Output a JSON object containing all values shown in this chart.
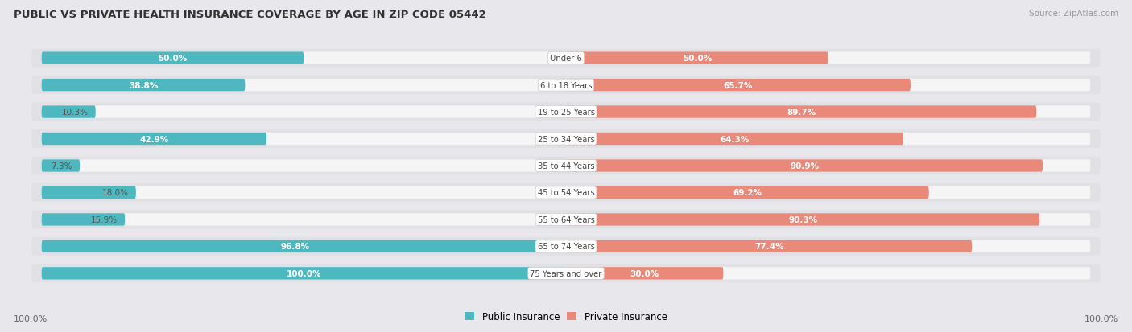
{
  "title": "PUBLIC VS PRIVATE HEALTH INSURANCE COVERAGE BY AGE IN ZIP CODE 05442",
  "source": "Source: ZipAtlas.com",
  "categories": [
    "Under 6",
    "6 to 18 Years",
    "19 to 25 Years",
    "25 to 34 Years",
    "35 to 44 Years",
    "45 to 54 Years",
    "55 to 64 Years",
    "65 to 74 Years",
    "75 Years and over"
  ],
  "public_values": [
    50.0,
    38.8,
    10.3,
    42.9,
    7.3,
    18.0,
    15.9,
    96.8,
    100.0
  ],
  "private_values": [
    50.0,
    65.7,
    89.7,
    64.3,
    90.9,
    69.2,
    90.3,
    77.4,
    30.0
  ],
  "public_color": "#4db8bf",
  "private_color": "#e8897a",
  "private_color_light": "#f0b8ae",
  "bg_color": "#e8e8ec",
  "row_bg_color": "#e0e0e5",
  "bar_bg_color": "#f5f5f5",
  "label_color_dark": "#555555",
  "legend_labels": [
    "Public Insurance",
    "Private Insurance"
  ],
  "axis_label_left": "100.0%",
  "axis_label_right": "100.0%",
  "private_light_threshold": 8,
  "pub_inside_threshold": 15,
  "priv_inside_threshold": 15
}
